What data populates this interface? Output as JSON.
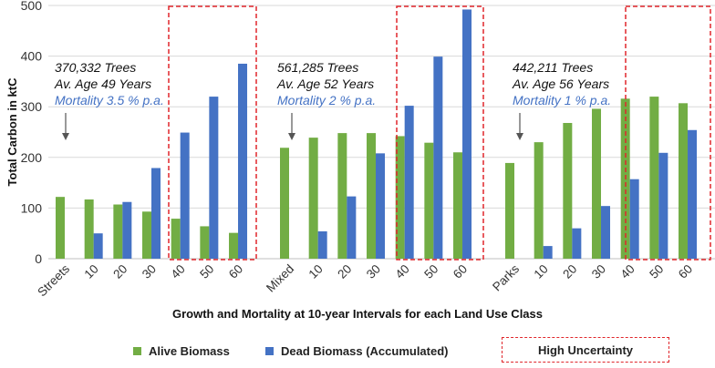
{
  "chart_data": {
    "type": "bar",
    "ylabel": "Total Carbon in ktC",
    "xlabel": "Growth and Mortality at 10-year Intervals for each Land Use Class",
    "ylim": [
      0,
      500
    ],
    "yticks": [
      "0",
      "100",
      "200",
      "300",
      "400",
      "500"
    ],
    "grid": true,
    "groups": [
      {
        "categories": [
          "Streets",
          "10",
          "20",
          "30",
          "40",
          "50",
          "60"
        ],
        "alive": [
          122,
          117,
          107,
          93,
          79,
          64,
          51
        ],
        "dead": [
          0,
          50,
          112,
          179,
          249,
          320,
          385
        ]
      },
      {
        "categories": [
          "Mixed",
          "10",
          "20",
          "30",
          "40",
          "50",
          "60"
        ],
        "alive": [
          219,
          239,
          248,
          248,
          242,
          229,
          210
        ],
        "dead": [
          0,
          54,
          123,
          208,
          302,
          399,
          492
        ]
      },
      {
        "categories": [
          "Parks",
          "10",
          "20",
          "30",
          "40",
          "50",
          "60"
        ],
        "alive": [
          189,
          230,
          268,
          296,
          316,
          320,
          307
        ],
        "dead": [
          0,
          25,
          60,
          104,
          157,
          209,
          254
        ]
      }
    ],
    "series": [
      {
        "name": "Alive Biomass",
        "color": "#72ad44"
      },
      {
        "name": "Dead Biomass (Accumulated)",
        "color": "#4472c4"
      }
    ],
    "uncertainty_label": "High Uncertainty",
    "uncertainty_color": "#e0262b",
    "annotations": [
      {
        "trees": "370,332 Trees",
        "age": "Av. Age 49 Years",
        "mortality": "Mortality 3.5 % p.a."
      },
      {
        "trees": "561,285 Trees",
        "age": "Av. Age 52 Years",
        "mortality": "Mortality 2 % p.a."
      },
      {
        "trees": "442,211 Trees",
        "age": "Av. Age 56 Years",
        "mortality": "Mortality 1 % p.a."
      }
    ],
    "annotation_mortality_color": "#4472c4"
  }
}
